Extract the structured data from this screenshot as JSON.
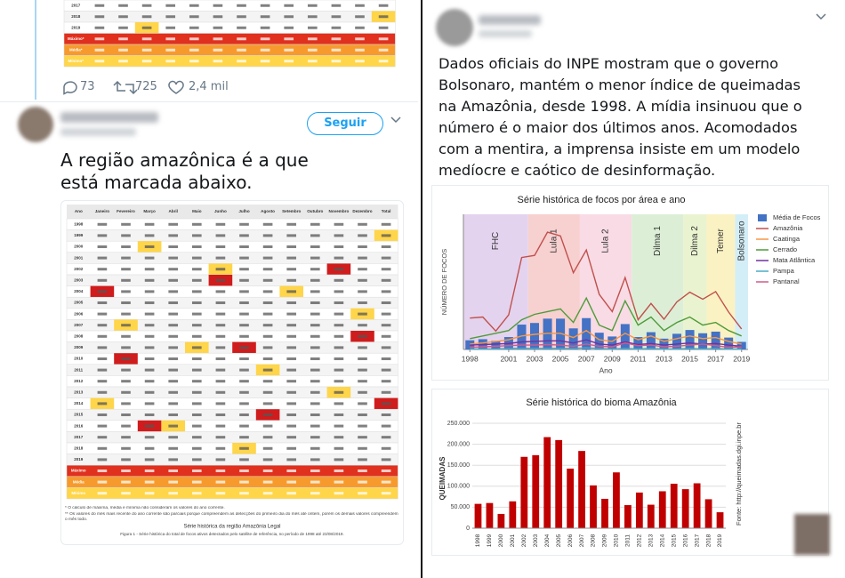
{
  "tweets": [
    {
      "table": {
        "row_labels": [
          "2017",
          "2018",
          "2019",
          "Máximo*",
          "Média*",
          "Mínimo*"
        ]
      },
      "stats": {
        "replies": "73",
        "retweets": "725",
        "likes": "2,4 mil"
      }
    },
    {
      "follow_button": "Seguir",
      "text": "A região amazônica é a que está marcada abaixo.",
      "table": {
        "columns": [
          "Ano",
          "Janeiro",
          "Fevereiro",
          "Março",
          "Abril",
          "Maio",
          "Junho",
          "Julho",
          "Agosto",
          "Setembro",
          "Outubro",
          "Novembro",
          "Dezembro",
          "Total"
        ],
        "row_labels": [
          "1998",
          "1999",
          "2000",
          "2001",
          "2002",
          "2003",
          "2004",
          "2005",
          "2006",
          "2007",
          "2008",
          "2009",
          "2010",
          "2011",
          "2012",
          "2013",
          "2014",
          "2015",
          "2016",
          "2017",
          "2018",
          "2019",
          "Máximo",
          "Média",
          "Mínimo"
        ],
        "notes": [
          "* O cálculo de máxima, média e mínima não consideram os valores do ano corrente.",
          "** Os valores do mês mais recente do ano corrente são parciais porque compreendem as detecções do primeiro dia do mês até ontem, porém os demais valores compreendem o mês todo."
        ],
        "caption_title": "Série histórica da região Amazônia Legal",
        "caption": "Figura 1 - Série histórica do total de focos ativos detectados pelo satélite de referência, no período de 1998 até 23/08/2019."
      }
    },
    {
      "text": "Dados oficiais do INPE mostram que o governo Bolsonaro, mantém o menor índice de queimadas na Amazônia, desde 1998. A mídia insinuou que o número é o maior dos últimos anos. Acomodados com a mentira, a imprensa insiste em um modelo medíocre e caótico de desinformação."
    }
  ],
  "chart_data": [
    {
      "type": "line",
      "title": "Série histórica de focos por área e ano",
      "y_label": "NÚMERO DE FOCOS",
      "x_label": "Ano",
      "x": [
        1998,
        1999,
        2000,
        2001,
        2002,
        2003,
        2004,
        2005,
        2006,
        2007,
        2008,
        2009,
        2010,
        2011,
        2012,
        2013,
        2014,
        2015,
        2016,
        2017,
        2018,
        2019
      ],
      "xlim": [
        1997.5,
        2019.5
      ],
      "xticks": [
        1998,
        2001,
        2003,
        2005,
        2007,
        2009,
        2011,
        2013,
        2015,
        2017,
        2019
      ],
      "ylim": [
        0,
        250000
      ],
      "periods": [
        {
          "label": "FHC",
          "start": 1997.5,
          "end": 2002.5,
          "color": "#e4d3ee"
        },
        {
          "label": "Lula 1",
          "start": 2002.5,
          "end": 2006.5,
          "color": "#f7d0d0"
        },
        {
          "label": "Lula 2",
          "start": 2006.5,
          "end": 2010.5,
          "color": "#f8dbe4"
        },
        {
          "label": "Dilma 1",
          "start": 2010.5,
          "end": 2014.5,
          "color": "#dcefd6"
        },
        {
          "label": "Dilma 2",
          "start": 2014.5,
          "end": 2016.3,
          "color": "#eaf3cf"
        },
        {
          "label": "Temer",
          "start": 2016.3,
          "end": 2018.5,
          "color": "#fbf2c4"
        },
        {
          "label": "Bolsonaro",
          "start": 2018.5,
          "end": 2019.5,
          "color": "#d3eef7"
        }
      ],
      "series": [
        {
          "name": "Média de Focos",
          "kind": "bar",
          "color": "#4472c4",
          "values": [
            17000,
            19000,
            16000,
            23000,
            46000,
            49000,
            57000,
            57000,
            39000,
            58000,
            31000,
            24000,
            47000,
            23000,
            32000,
            20000,
            29000,
            36000,
            30000,
            33000,
            22000,
            14000
          ]
        },
        {
          "name": "Amazônia",
          "kind": "line",
          "color": "#c0504d",
          "values": [
            58000,
            60000,
            34000,
            64000,
            170000,
            174000,
            217000,
            210000,
            142000,
            184000,
            102000,
            70000,
            133000,
            55000,
            85000,
            56000,
            88000,
            106000,
            93000,
            107000,
            69000,
            38000
          ]
        },
        {
          "name": "Caatinga",
          "kind": "line",
          "color": "#f79646",
          "values": [
            10000,
            12000,
            15000,
            18000,
            25000,
            28000,
            30000,
            30000,
            22000,
            35000,
            18000,
            15000,
            30000,
            18000,
            25000,
            15000,
            20000,
            25000,
            20000,
            22000,
            15000,
            10000
          ]
        },
        {
          "name": "Cerrado",
          "kind": "line",
          "color": "#4f9b3a",
          "values": [
            20000,
            25000,
            30000,
            35000,
            55000,
            65000,
            70000,
            75000,
            50000,
            95000,
            45000,
            35000,
            90000,
            45000,
            60000,
            35000,
            50000,
            60000,
            45000,
            50000,
            35000,
            25000
          ]
        },
        {
          "name": "Mata Atlântica",
          "kind": "line",
          "color": "#7030a0",
          "values": [
            8000,
            9000,
            10000,
            11000,
            14000,
            15000,
            16000,
            16000,
            12000,
            18000,
            10000,
            8000,
            14000,
            9000,
            11000,
            8000,
            10000,
            12000,
            10000,
            11000,
            8000,
            6000
          ]
        },
        {
          "name": "Pampa",
          "kind": "line",
          "color": "#4bacc6",
          "values": [
            1000,
            1000,
            1000,
            2000,
            2000,
            2000,
            2000,
            2000,
            2000,
            3000,
            2000,
            1000,
            2000,
            1000,
            2000,
            1000,
            1000,
            2000,
            1000,
            2000,
            1000,
            1000
          ]
        },
        {
          "name": "Pantanal",
          "kind": "line",
          "color": "#d25b8a",
          "values": [
            4000,
            5000,
            6000,
            7000,
            8000,
            8000,
            9000,
            8000,
            6000,
            10000,
            6000,
            5000,
            12000,
            7000,
            8000,
            5000,
            6000,
            8000,
            10000,
            7000,
            4000,
            5000
          ]
        }
      ]
    },
    {
      "type": "bar",
      "title": "Série histórica do bioma Amazônia",
      "y_label": "QUEIMADAS",
      "source": "Fonte: http://queimadas.dgi.inpe.br",
      "categories": [
        "1998",
        "1999",
        "2000",
        "2001",
        "2002",
        "2003",
        "2004",
        "2005",
        "2006",
        "2007",
        "2008",
        "2009",
        "2010",
        "2011",
        "2012",
        "2013",
        "2014",
        "2015",
        "2016",
        "2017",
        "2018",
        "2019"
      ],
      "values": [
        58000,
        60000,
        34000,
        64000,
        170000,
        174000,
        217000,
        210000,
        142000,
        184000,
        102000,
        70000,
        133000,
        55000,
        85000,
        56000,
        88000,
        106000,
        93000,
        107000,
        69000,
        38000
      ],
      "color": "#c00000",
      "ylim": [
        0,
        250000
      ],
      "yticks": [
        0,
        {
          "value": 50000,
          "label": "50.000"
        },
        {
          "value": 100000,
          "label": "100.000"
        },
        {
          "value": 150000,
          "label": "150.000"
        },
        {
          "value": 200000,
          "label": "200.000"
        },
        {
          "value": 250000,
          "label": "250.000"
        }
      ],
      "grid": true
    }
  ]
}
